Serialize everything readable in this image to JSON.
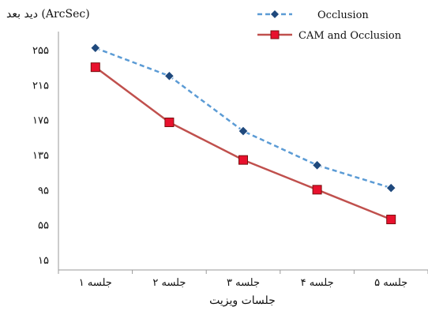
{
  "chart_data": {
    "type": "line",
    "ylabel": "دید بعد (ArcSec)",
    "xlabel": "جلسات ویزیت",
    "categories": [
      "جلسه ۱",
      "جلسه ۲",
      "جلسه ۳",
      "جلسه ۴",
      "جلسه ۵"
    ],
    "y_ticks": [
      15,
      55,
      95,
      135,
      175,
      215,
      255
    ],
    "y_tick_labels": [
      "۱۵",
      "۵۵",
      "۹۵",
      "۱۳۵",
      "۱۷۵",
      "۲۱۵",
      "۲۵۵"
    ],
    "ylim": [
      15,
      255
    ],
    "grid": false,
    "legend_position": "top-right",
    "series": [
      {
        "name": "Occlusion",
        "values": [
          257,
          225,
          162,
          123,
          97
        ],
        "color": "#5B9BD5",
        "line_style": "dashed",
        "marker": "diamond",
        "marker_color": "#1F497D"
      },
      {
        "name": "CAM and Occlusion",
        "values": [
          235,
          172,
          129,
          95,
          61
        ],
        "color": "#C0504D",
        "line_style": "solid",
        "marker": "square",
        "marker_color": "#E8112D"
      }
    ]
  }
}
